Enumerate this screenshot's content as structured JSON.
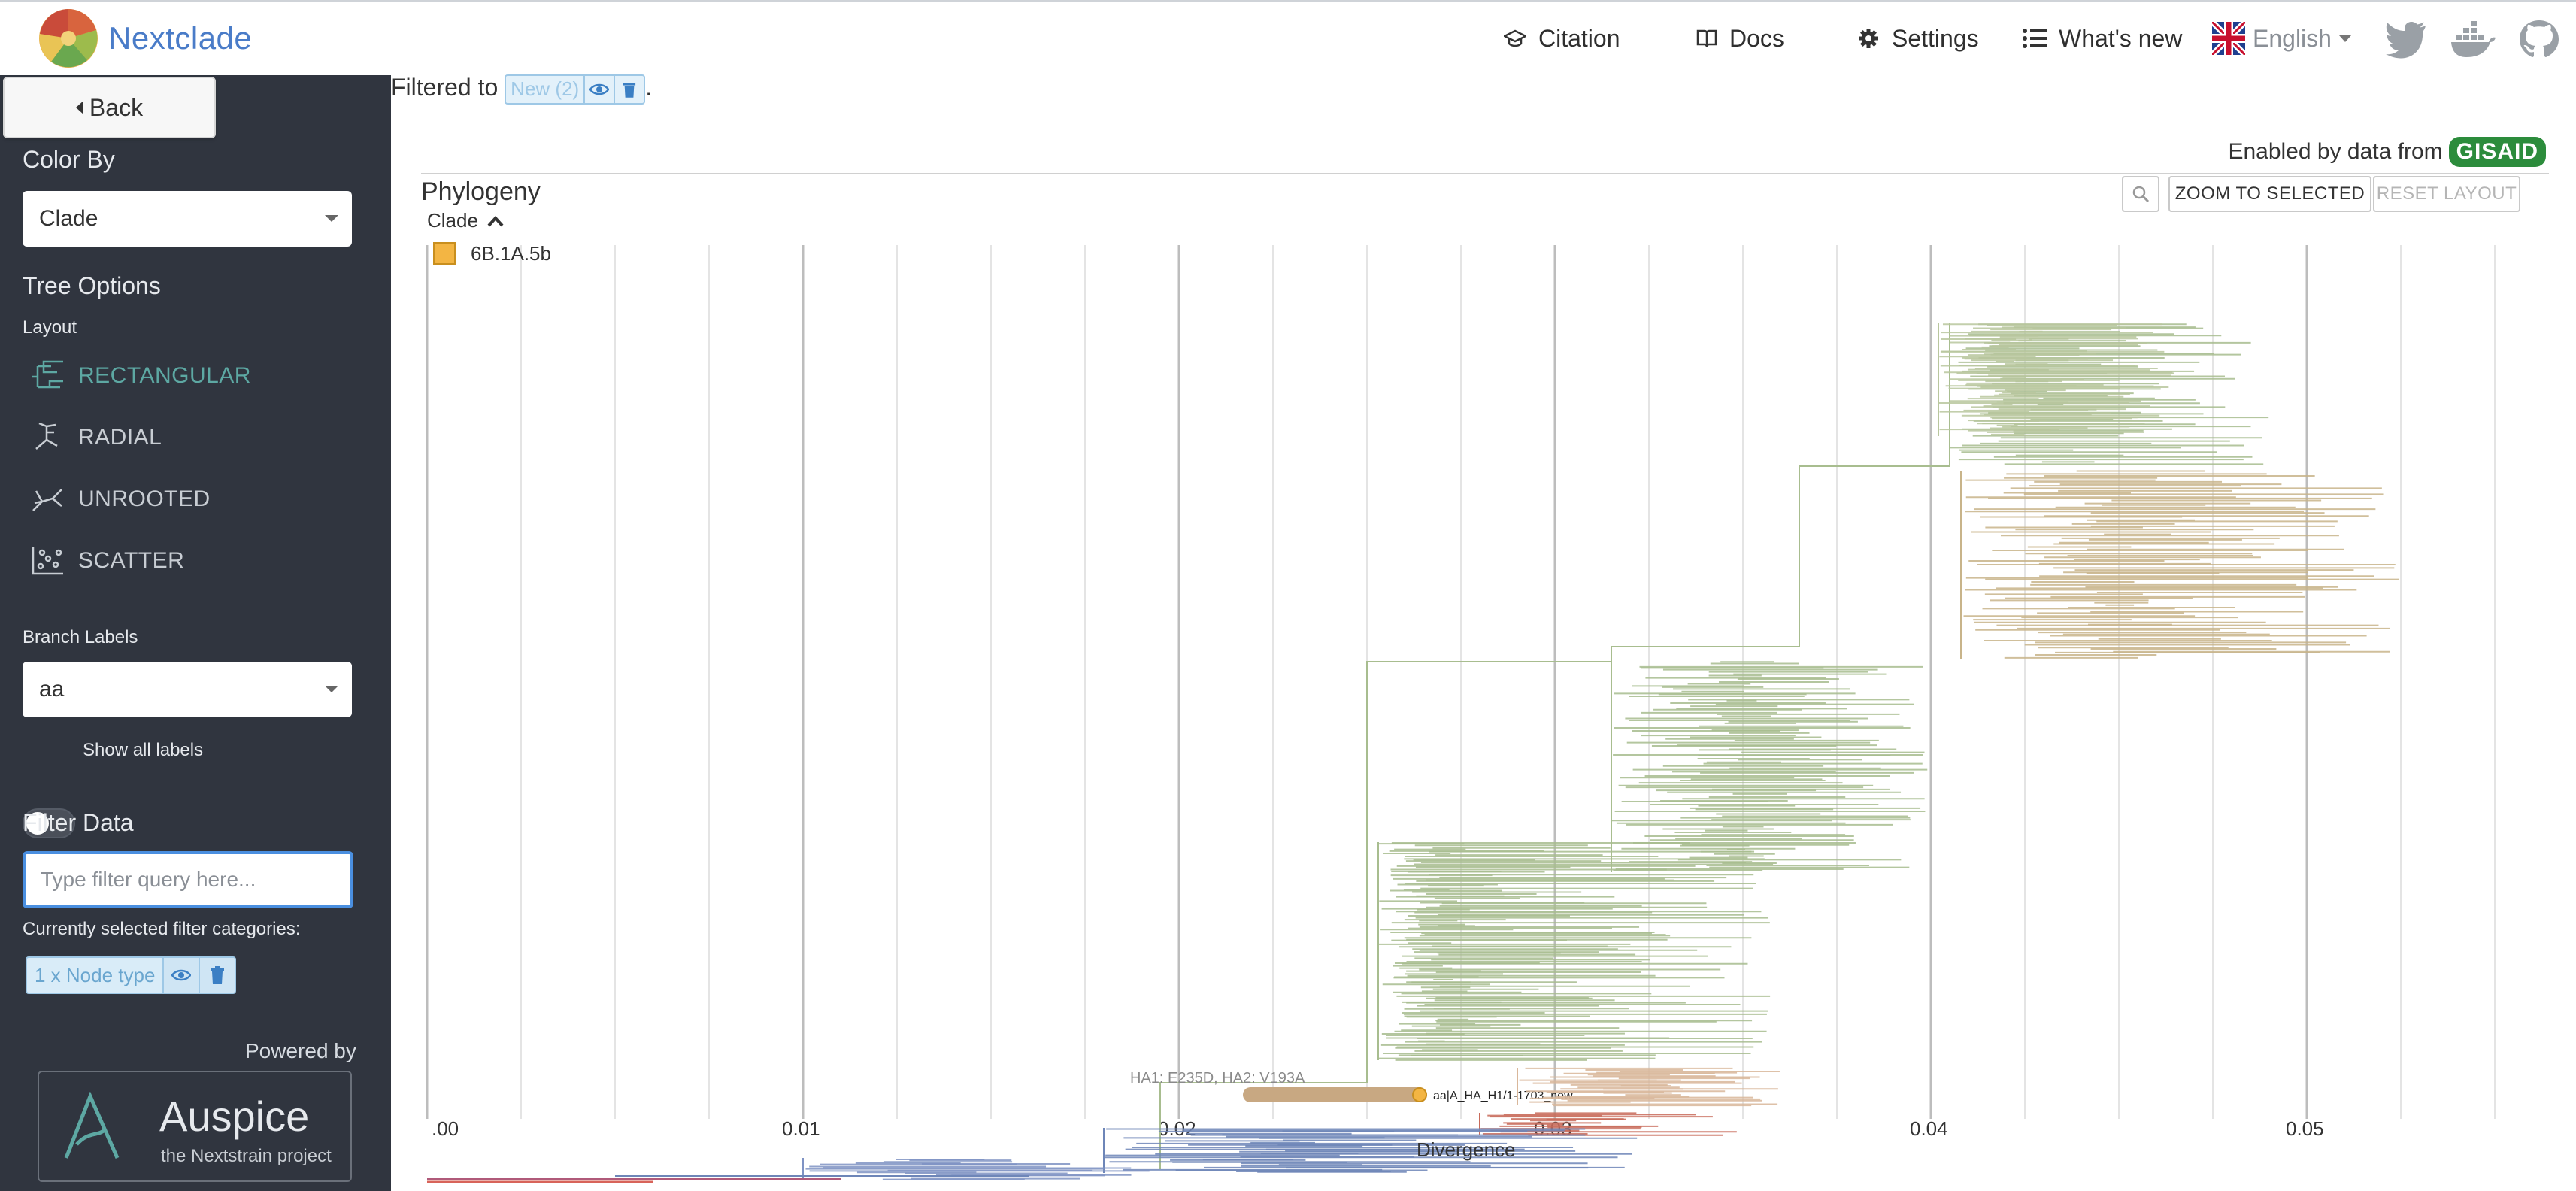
{
  "nav": {
    "brand": "Nextclade",
    "citation": "Citation",
    "docs": "Docs",
    "settings": "Settings",
    "whats_new": "What's new",
    "language": "English"
  },
  "back_label": "Back",
  "sidebar": {
    "color_by_heading": "Color By",
    "color_by_value": "Clade",
    "tree_options_heading": "Tree Options",
    "layout_heading": "Layout",
    "layouts": [
      "RECTANGULAR",
      "RADIAL",
      "UNROOTED",
      "SCATTER"
    ],
    "branch_labels_heading": "Branch Labels",
    "branch_labels_value": "aa",
    "show_all_labels": "Show all labels",
    "filter_heading": "Filter Data",
    "filter_placeholder": "Type filter query here...",
    "current_filters_label": "Currently selected filter categories:",
    "filter_chip": "1 x Node type",
    "powered_by": "Powered by",
    "auspice_name": "Auspice",
    "auspice_sub": "the Nextstrain project"
  },
  "main": {
    "filtered_prefix": "Filtered to",
    "filtered_chip": "New (2)",
    "filtered_suffix": ".",
    "enabled_by": "Enabled by data from",
    "gisaid": "GISAID",
    "panel_title": "Phylogeny",
    "legend_title": "Clade",
    "legend_items": [
      {
        "label": "6B.1A.5b",
        "color": "#f3b543"
      }
    ],
    "zoom_selected": "ZOOM TO SELECTED",
    "reset_layout": "RESET LAYOUT",
    "branch_annotation": "HA1: E235D, HA2: V193A",
    "node_label": "aa|A_HA_H1/1-1703_new",
    "x_axis_label": "Divergence",
    "x_ticks": [
      ".00",
      "0.01",
      "0.02",
      "0.03",
      "0.04",
      "0.05"
    ]
  },
  "colors": {
    "sidebar_bg": "#30353f",
    "active_layout": "#5da8a3",
    "clade_green": "#a8bd8f",
    "clade_tan": "#c8b48a",
    "clade_orange": "#f3b543",
    "clade_blue": "#6e86b8",
    "clade_red": "#c86b5a"
  }
}
